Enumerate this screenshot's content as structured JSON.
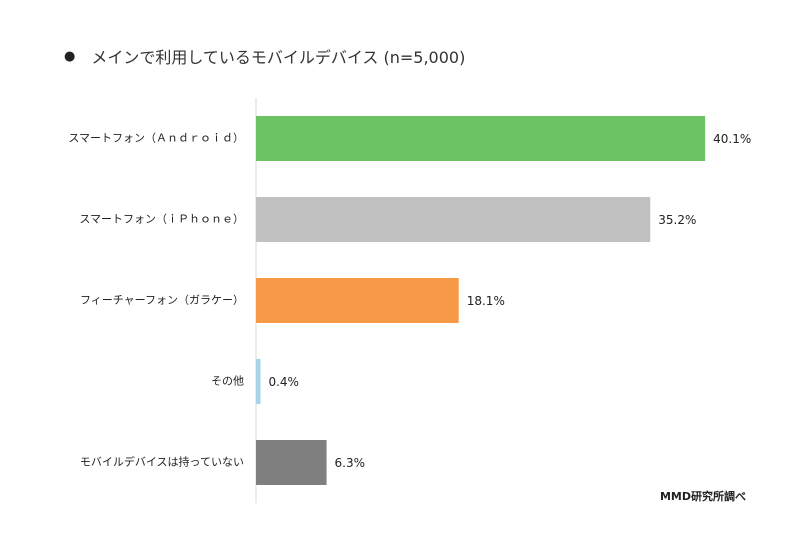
{
  "title": "メインで利用しているモバイルデバイス (n=5,000)",
  "bullet": "●",
  "source": "MMD研究所調べ",
  "chart_data": {
    "type": "bar",
    "orientation": "horizontal",
    "categories": [
      "スマートフォン（Ａｎｄｒｏｉｄ）",
      "スマートフォン（ｉＰｈｏｎｅ）",
      "フィーチャーフォン（ガラケー）",
      "その他",
      "モバイルデバイスは持っていない"
    ],
    "values": [
      40.1,
      35.2,
      18.1,
      0.4,
      6.3
    ],
    "value_labels": [
      "40.1%",
      "35.2%",
      "18.1%",
      "0.4%",
      "6.3%"
    ],
    "colors": [
      "#6cc364",
      "#c0c0c0",
      "#f79a48",
      "#a8d4e6",
      "#7f7f7f"
    ],
    "xlim": [
      0,
      45
    ],
    "grid": false
  }
}
